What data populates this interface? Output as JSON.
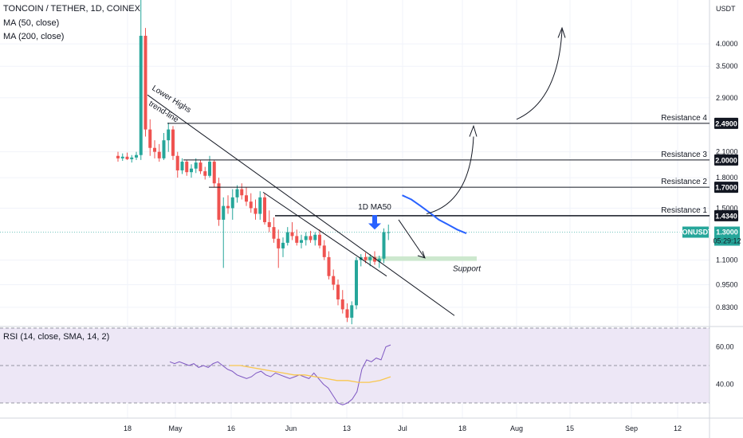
{
  "header": {
    "symbol_title": "TONCOIN / TETHER, 1D, COINEX",
    "indicator_ma50": "MA (50, close)",
    "indicator_ma200": "MA (200, close)",
    "rsi_label": "RSI (14, close, SMA, 14, 2)"
  },
  "price_axis": {
    "currency": "USDT",
    "ticks": [
      "4.0000",
      "3.5000",
      "2.9000",
      "2.1000",
      "1.8000",
      "1.5000",
      "1.1000",
      "0.9500",
      "0.8300"
    ]
  },
  "rsi_axis": {
    "ticks": [
      "60.00",
      "40.00"
    ]
  },
  "date_axis": {
    "labels": [
      "18",
      "May",
      "16",
      "Jun",
      "13",
      "Jul",
      "18",
      "Aug",
      "15",
      "Sep",
      "12"
    ]
  },
  "annotations": {
    "trendline_label_1": "Lower Highs",
    "trendline_label_2": "trend-line",
    "ma_label": "1D MA50",
    "support_label": "Support",
    "resistances": [
      {
        "label": "Resistance 4",
        "price": "2.4900"
      },
      {
        "label": "Resistance 3",
        "price": "2.0000"
      },
      {
        "label": "Resistance 2",
        "price": "1.7000"
      },
      {
        "label": "Resistance 1",
        "price": "1.4340"
      }
    ]
  },
  "current_price": {
    "ticker": "TONUSDT",
    "price": "1.3000",
    "countdown": "05:29:12"
  },
  "colors": {
    "up": "#26a69a",
    "down": "#ef5350",
    "ma50": "#2962ff",
    "rsi_line": "#7e57c2",
    "rsi_ma": "#f9c74f",
    "rsi_band": "#ede7f6",
    "support_zone": "#c8e6c9",
    "arrow": "#2962ff"
  },
  "chart_data": {
    "type": "candlestick",
    "title": "TONCOIN / TETHER, 1D, COINEX",
    "ylabel": "USDT",
    "ylim": [
      0.74,
      5.2
    ],
    "y_scale": "log",
    "x_labels": [
      "18",
      "May",
      "16",
      "Jun",
      "13",
      "Jul",
      "18",
      "Aug",
      "15",
      "Sep",
      "12"
    ],
    "candles": [
      {
        "o": 2.05,
        "h": 2.1,
        "l": 1.98,
        "c": 2.02
      },
      {
        "o": 2.02,
        "h": 2.08,
        "l": 1.99,
        "c": 2.04
      },
      {
        "o": 2.04,
        "h": 2.09,
        "l": 2.0,
        "c": 2.01
      },
      {
        "o": 2.01,
        "h": 2.06,
        "l": 1.97,
        "c": 2.03
      },
      {
        "o": 2.03,
        "h": 2.1,
        "l": 2.0,
        "c": 2.06
      },
      {
        "o": 2.06,
        "h": 5.2,
        "l": 2.0,
        "c": 4.2
      },
      {
        "o": 4.2,
        "h": 4.4,
        "l": 2.3,
        "c": 2.4
      },
      {
        "o": 2.4,
        "h": 2.55,
        "l": 2.05,
        "c": 2.15
      },
      {
        "o": 2.15,
        "h": 2.25,
        "l": 2.02,
        "c": 2.1
      },
      {
        "o": 2.1,
        "h": 2.2,
        "l": 1.98,
        "c": 2.02
      },
      {
        "o": 2.02,
        "h": 2.35,
        "l": 2.0,
        "c": 2.25
      },
      {
        "o": 2.25,
        "h": 2.5,
        "l": 2.1,
        "c": 2.4
      },
      {
        "o": 2.4,
        "h": 2.45,
        "l": 2.0,
        "c": 2.05
      },
      {
        "o": 2.05,
        "h": 2.1,
        "l": 1.8,
        "c": 1.88
      },
      {
        "o": 1.88,
        "h": 2.02,
        "l": 1.84,
        "c": 1.98
      },
      {
        "o": 1.98,
        "h": 2.0,
        "l": 1.82,
        "c": 1.86
      },
      {
        "o": 1.86,
        "h": 1.95,
        "l": 1.8,
        "c": 1.9
      },
      {
        "o": 1.9,
        "h": 2.02,
        "l": 1.85,
        "c": 1.97
      },
      {
        "o": 1.97,
        "h": 2.0,
        "l": 1.84,
        "c": 1.87
      },
      {
        "o": 1.87,
        "h": 1.92,
        "l": 1.78,
        "c": 1.82
      },
      {
        "o": 1.82,
        "h": 2.05,
        "l": 1.8,
        "c": 1.98
      },
      {
        "o": 1.98,
        "h": 2.0,
        "l": 1.7,
        "c": 1.74
      },
      {
        "o": 1.74,
        "h": 1.8,
        "l": 1.35,
        "c": 1.4
      },
      {
        "o": 1.4,
        "h": 1.6,
        "l": 1.05,
        "c": 1.52
      },
      {
        "o": 1.52,
        "h": 1.62,
        "l": 1.45,
        "c": 1.5
      },
      {
        "o": 1.5,
        "h": 1.68,
        "l": 1.4,
        "c": 1.6
      },
      {
        "o": 1.6,
        "h": 1.72,
        "l": 1.55,
        "c": 1.68
      },
      {
        "o": 1.68,
        "h": 1.74,
        "l": 1.58,
        "c": 1.62
      },
      {
        "o": 1.62,
        "h": 1.7,
        "l": 1.52,
        "c": 1.56
      },
      {
        "o": 1.56,
        "h": 1.64,
        "l": 1.46,
        "c": 1.5
      },
      {
        "o": 1.5,
        "h": 1.58,
        "l": 1.4,
        "c": 1.45
      },
      {
        "o": 1.45,
        "h": 1.66,
        "l": 1.4,
        "c": 1.6
      },
      {
        "o": 1.6,
        "h": 1.64,
        "l": 1.36,
        "c": 1.38
      },
      {
        "o": 1.38,
        "h": 1.48,
        "l": 1.3,
        "c": 1.34
      },
      {
        "o": 1.34,
        "h": 1.42,
        "l": 1.22,
        "c": 1.25
      },
      {
        "o": 1.25,
        "h": 1.32,
        "l": 1.05,
        "c": 1.18
      },
      {
        "o": 1.18,
        "h": 1.26,
        "l": 1.12,
        "c": 1.22
      },
      {
        "o": 1.22,
        "h": 1.34,
        "l": 1.2,
        "c": 1.3
      },
      {
        "o": 1.3,
        "h": 1.38,
        "l": 1.24,
        "c": 1.27
      },
      {
        "o": 1.27,
        "h": 1.32,
        "l": 1.2,
        "c": 1.22
      },
      {
        "o": 1.22,
        "h": 1.28,
        "l": 1.18,
        "c": 1.24
      },
      {
        "o": 1.24,
        "h": 1.3,
        "l": 1.2,
        "c": 1.27
      },
      {
        "o": 1.27,
        "h": 1.31,
        "l": 1.22,
        "c": 1.24
      },
      {
        "o": 1.24,
        "h": 1.3,
        "l": 1.2,
        "c": 1.28
      },
      {
        "o": 1.28,
        "h": 1.32,
        "l": 1.18,
        "c": 1.2
      },
      {
        "o": 1.2,
        "h": 1.24,
        "l": 1.1,
        "c": 1.12
      },
      {
        "o": 1.12,
        "h": 1.16,
        "l": 0.98,
        "c": 1.0
      },
      {
        "o": 1.0,
        "h": 1.04,
        "l": 0.92,
        "c": 0.95
      },
      {
        "o": 0.95,
        "h": 0.98,
        "l": 0.84,
        "c": 0.87
      },
      {
        "o": 0.87,
        "h": 0.92,
        "l": 0.8,
        "c": 0.82
      },
      {
        "o": 0.82,
        "h": 0.85,
        "l": 0.76,
        "c": 0.78
      },
      {
        "o": 0.78,
        "h": 0.86,
        "l": 0.75,
        "c": 0.84
      },
      {
        "o": 0.84,
        "h": 1.12,
        "l": 0.82,
        "c": 1.1
      },
      {
        "o": 1.1,
        "h": 1.14,
        "l": 1.06,
        "c": 1.12
      },
      {
        "o": 1.12,
        "h": 1.15,
        "l": 1.08,
        "c": 1.1
      },
      {
        "o": 1.1,
        "h": 1.14,
        "l": 1.06,
        "c": 1.12
      },
      {
        "o": 1.12,
        "h": 1.16,
        "l": 1.07,
        "c": 1.09
      },
      {
        "o": 1.09,
        "h": 1.13,
        "l": 1.05,
        "c": 1.11
      },
      {
        "o": 1.11,
        "h": 1.33,
        "l": 1.08,
        "c": 1.3
      },
      {
        "o": 1.3,
        "h": 1.36,
        "l": 1.24,
        "c": 1.3
      }
    ],
    "ma50": [
      [
        62,
        1.62
      ],
      [
        64,
        1.58
      ],
      [
        66,
        1.52
      ],
      [
        68,
        1.46
      ],
      [
        70,
        1.4
      ],
      [
        72,
        1.36
      ],
      [
        74,
        1.32
      ],
      [
        76,
        1.29
      ]
    ],
    "rsi": [
      52,
      51,
      52,
      51,
      50,
      51,
      49,
      50,
      49,
      51,
      52,
      50,
      48,
      47,
      45,
      44,
      43,
      44,
      46,
      47,
      45,
      44,
      46,
      45,
      44,
      43,
      44,
      45,
      44,
      43,
      46,
      43,
      40,
      38,
      34,
      30,
      29,
      30,
      32,
      36,
      48,
      53,
      52,
      54,
      53,
      60,
      61
    ],
    "rsi_ma": [
      50,
      50,
      49,
      48,
      47,
      46,
      45,
      45,
      44,
      43,
      42,
      42,
      41,
      41,
      42,
      44
    ]
  }
}
